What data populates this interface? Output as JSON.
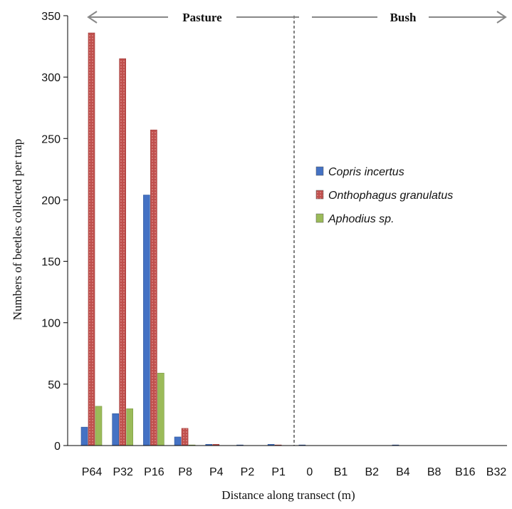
{
  "chart_data": {
    "type": "bar",
    "title": "",
    "xlabel": "Distance along transect (m)",
    "ylabel": "Numbers of beetles collected per trap",
    "ylim": [
      0,
      350
    ],
    "yticks": [
      "0",
      "50",
      "100",
      "150",
      "200",
      "250",
      "300",
      "350"
    ],
    "grid": false,
    "legend_position": "right",
    "categories": [
      "P64",
      "P32",
      "P16",
      "P8",
      "P4",
      "P2",
      "P1",
      "0",
      "B1",
      "B2",
      "B4",
      "B8",
      "B16",
      "B32"
    ],
    "series": [
      {
        "name": "Copris incertus",
        "color": "#4472C4",
        "values": [
          15,
          26,
          204,
          7,
          1,
          0.5,
          1,
          0.5,
          0,
          0,
          0.5,
          0,
          0,
          0
        ]
      },
      {
        "name": "Onthophagus granulatus",
        "color": "#C0504D",
        "values": [
          336,
          315,
          257,
          14,
          1,
          0,
          0.5,
          0,
          0,
          0,
          0,
          0,
          0,
          0
        ]
      },
      {
        "name": "Aphodius sp.",
        "color": "#9BBB59",
        "values": [
          32,
          30,
          59,
          0.5,
          0,
          0,
          0,
          0,
          0,
          0,
          0,
          0,
          0,
          0
        ]
      }
    ],
    "annotations": {
      "pasture_label": "Pasture",
      "bush_label": "Bush",
      "divider_category": "0"
    }
  }
}
